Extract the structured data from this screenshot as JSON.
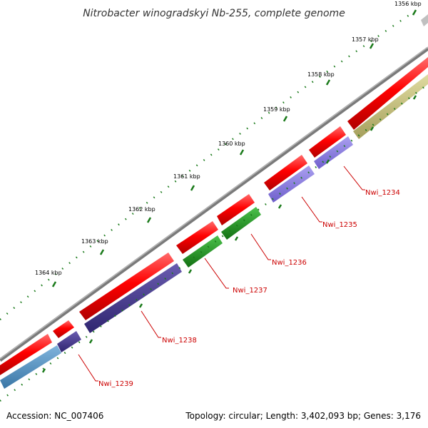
{
  "title": "Nitrobacter winogradskyi Nb-255, complete genome",
  "footer": {
    "accession": "Accession: NC_007406",
    "summary": "Topology: circular; Length: 3,402,093 bp; Genes: 3,176"
  },
  "colors": {
    "backbone": "#8a8a8a",
    "forward_cds": "#ff0000",
    "reverse_cds_purple": "#8877dd",
    "reverse_cds_dark": "#4a3d8f",
    "reverse_cds_green": "#1f9a1f",
    "reverse_cds_blue": "#4f8fc0",
    "reverse_cds_olive": "#c8c280",
    "tick": "#1a7a1a",
    "label_red": "#cc0000"
  },
  "ticks": [
    {
      "label": "1356 kbp"
    },
    {
      "label": "1357 kbp"
    },
    {
      "label": "1358 kbp"
    },
    {
      "label": "1359 kbp"
    },
    {
      "label": "1360 kbp"
    },
    {
      "label": "1361 kbp"
    },
    {
      "label": "1362 kbp"
    },
    {
      "label": "1363 kbp"
    },
    {
      "label": "1364 kbp"
    }
  ],
  "gene_labels": [
    {
      "label": "Nwi_1234"
    },
    {
      "label": "Nwi_1235"
    },
    {
      "label": "Nwi_1236"
    },
    {
      "label": "Nwi_1237"
    },
    {
      "label": "Nwi_1238"
    },
    {
      "label": "Nwi_1239"
    }
  ]
}
